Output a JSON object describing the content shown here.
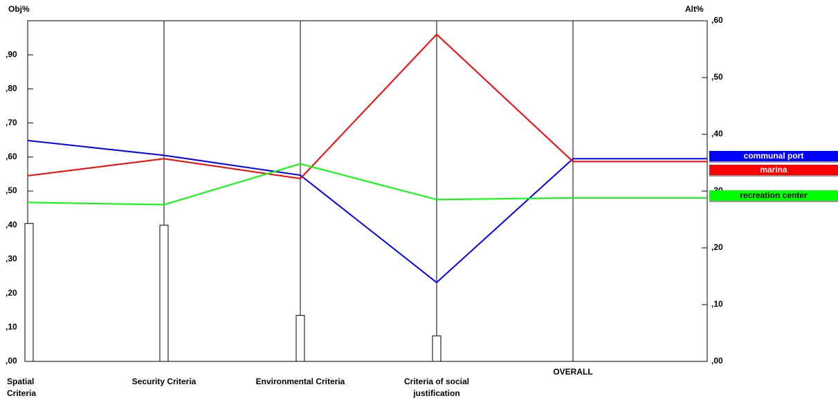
{
  "chart_data": {
    "type": "sensitivity",
    "y_label": "Obj%",
    "y2_label": "Alt%",
    "categories": [
      "Spatial Criteria",
      "Security Criteria",
      "Environmental Criteria",
      "Criteria of social justification",
      "OVERALL"
    ],
    "bars": {
      "color": "#ffffff",
      "values": [
        0.405,
        0.4,
        0.135,
        0.075
      ]
    },
    "ylim": [
      0,
      1.0
    ],
    "yticks": [
      {
        "value": 0,
        "label": ",00"
      },
      {
        "value": 0.1,
        "label": ",10"
      },
      {
        "value": 0.2,
        "label": ",20"
      },
      {
        "value": 0.3,
        "label": ",30"
      },
      {
        "value": 0.4,
        "label": ",40"
      },
      {
        "value": 0.5,
        "label": ",50"
      },
      {
        "value": 0.6,
        "label": ",60"
      },
      {
        "value": 0.7,
        "label": ",70"
      },
      {
        "value": 0.8,
        "label": ",80"
      },
      {
        "value": 0.9,
        "label": ",90"
      }
    ],
    "y2lim": [
      0,
      0.6
    ],
    "y2ticks": [
      {
        "value": 0,
        "label": ",00"
      },
      {
        "value": 0.1,
        "label": ",10"
      },
      {
        "value": 0.2,
        "label": ",20"
      },
      {
        "value": 0.3,
        "label": ",30"
      },
      {
        "value": 0.4,
        "label": ",40"
      },
      {
        "value": 0.5,
        "label": ",50"
      },
      {
        "value": 0.6,
        "label": ",60"
      }
    ],
    "series": [
      {
        "name": "communal port",
        "color": "#0000ff",
        "axis": "y2",
        "values": [
          0.389,
          0.363,
          0.328,
          0.139,
          0.357
        ]
      },
      {
        "name": "marina",
        "color": "#ff0000",
        "axis": "y2",
        "values": [
          0.327,
          0.357,
          0.322,
          0.576,
          0.352
        ]
      },
      {
        "name": "recreation center",
        "color": "#00ff00",
        "axis": "y2",
        "values": [
          0.28,
          0.276,
          0.348,
          0.285,
          0.288
        ]
      }
    ]
  }
}
